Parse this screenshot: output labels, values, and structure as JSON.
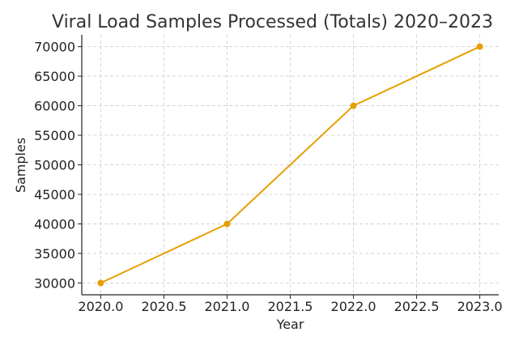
{
  "chart_data": {
    "type": "line",
    "title": "Viral Load Samples Processed (Totals) 2020–2023",
    "xlabel": "Year",
    "ylabel": "Samples",
    "x": [
      2020,
      2021,
      2022,
      2023
    ],
    "series": [
      {
        "values": [
          30000,
          40000,
          60000,
          70000
        ],
        "color": "#e69f00"
      }
    ],
    "xlim": [
      2019.85,
      2023.15
    ],
    "ylim": [
      28000,
      72000
    ],
    "xticks": [
      "2020.0",
      "2020.5",
      "2021.0",
      "2021.5",
      "2022.0",
      "2022.5",
      "2023.0"
    ],
    "yticks": [
      "30000",
      "35000",
      "40000",
      "45000",
      "50000",
      "55000",
      "60000",
      "65000",
      "70000"
    ],
    "grid": true,
    "marker": "circle"
  }
}
